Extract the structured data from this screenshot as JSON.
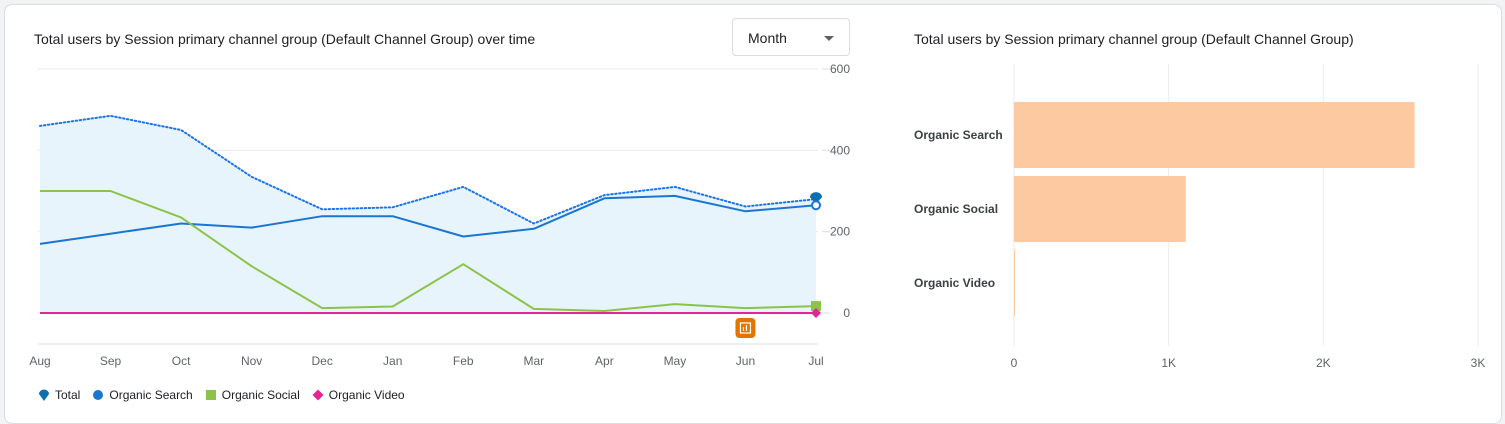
{
  "line_chart_title": "Total users by Session primary channel group (Default Channel Group) over time",
  "bar_chart_title": "Total users by Session primary channel group (Default Channel Group)",
  "granularity": {
    "selected": "Month"
  },
  "colors": {
    "total": "#1a73e8",
    "organic_search": "#1976d2",
    "organic_social": "#8bc34a",
    "organic_video": "#e52592",
    "total_fill": "#e8f4fc",
    "bar": "#fcc9a0",
    "anomaly": "#e37400"
  },
  "legend": [
    {
      "label": "Total",
      "icon": "pin-marker-icon",
      "color": "#1a73e8"
    },
    {
      "label": "Organic Search",
      "icon": "circle-marker-icon",
      "color": "#1976d2"
    },
    {
      "label": "Organic Social",
      "icon": "square-marker-icon",
      "color": "#8bc34a"
    },
    {
      "label": "Organic Video",
      "icon": "diamond-marker-icon",
      "color": "#e52592"
    }
  ],
  "chart_data": [
    {
      "type": "line",
      "title": "Total users by Session primary channel group (Default Channel Group) over time",
      "categories": [
        "Aug",
        "Sep",
        "Oct",
        "Nov",
        "Dec",
        "Jan",
        "Feb",
        "Mar",
        "Apr",
        "May",
        "Jun",
        "Jul"
      ],
      "ylim": [
        0,
        600
      ],
      "yticks": [
        "600",
        "400",
        "200",
        "0"
      ],
      "y_axis_position": "right",
      "grid": true,
      "legend_position": "bottom",
      "series": [
        {
          "name": "Total",
          "style": "dotted-area",
          "values": [
            460,
            485,
            450,
            335,
            255,
            260,
            310,
            220,
            290,
            310,
            262,
            280
          ]
        },
        {
          "name": "Organic Search",
          "style": "solid",
          "values": [
            170,
            195,
            220,
            210,
            238,
            238,
            188,
            207,
            282,
            288,
            250,
            265
          ]
        },
        {
          "name": "Organic Social",
          "style": "solid",
          "values": [
            300,
            300,
            235,
            115,
            12,
            16,
            120,
            10,
            5,
            22,
            12,
            17
          ]
        },
        {
          "name": "Organic Video",
          "style": "solid",
          "values": [
            0,
            0,
            0,
            0,
            0,
            0,
            0,
            0,
            0,
            0,
            0,
            0
          ]
        }
      ],
      "annotation": {
        "type": "anomaly-icon",
        "category": "Jun"
      }
    },
    {
      "type": "bar",
      "orientation": "horizontal",
      "title": "Total users by Session primary channel group (Default Channel Group)",
      "categories": [
        "Organic Search",
        "Organic Social",
        "Organic Video"
      ],
      "values": [
        2590,
        1110,
        3
      ],
      "xlim": [
        0,
        3000
      ],
      "xticks": [
        "0",
        "1K",
        "2K",
        "3K"
      ],
      "grid": true
    }
  ]
}
